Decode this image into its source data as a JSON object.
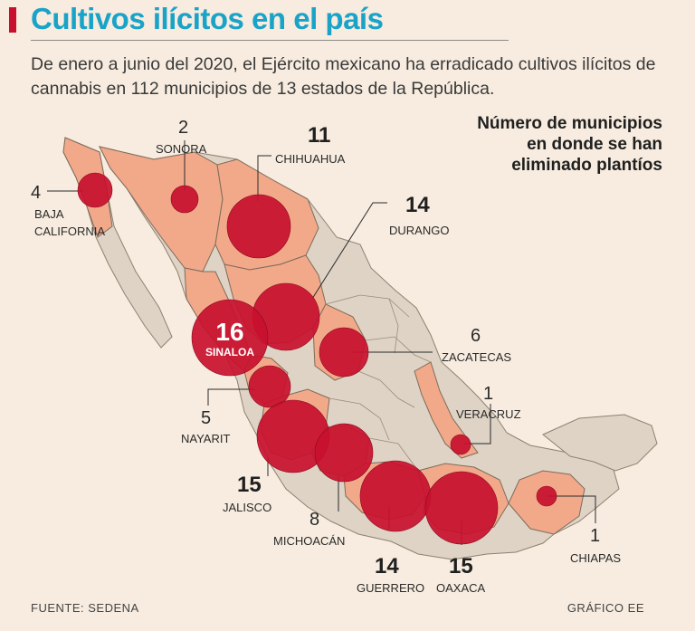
{
  "title": "Cultivos ilícitos en el país",
  "subtitle": "De enero a junio del 2020, el Ejército mexicano ha erradicado cultivos ilícitos de cannabis en 112 municipios de 13 estados de la República.",
  "legend_title": "Número de municipios en donde se han eliminado plantíos",
  "source": "FUENTE: SEDENA",
  "credit": "GRÁFICO EE",
  "colors": {
    "background": "#f7ecdf",
    "title": "#1aa3c8",
    "accent": "#c8102e",
    "bubble": "#c8102e",
    "highlight_state": "#f2a98a",
    "other_state": "#ded3c5",
    "border": "#7d6c5c"
  },
  "states": [
    {
      "name": "BAJA CALIFORNIA",
      "value": "4"
    },
    {
      "name": "SONORA",
      "value": "2"
    },
    {
      "name": "CHIHUAHUA",
      "value": "11"
    },
    {
      "name": "DURANGO",
      "value": "14"
    },
    {
      "name": "SINALOA",
      "value": "16"
    },
    {
      "name": "ZACATECAS",
      "value": "6"
    },
    {
      "name": "NAYARIT",
      "value": "5"
    },
    {
      "name": "VERACRUZ",
      "value": "1"
    },
    {
      "name": "JALISCO",
      "value": "15"
    },
    {
      "name": "MICHOACÁN",
      "value": "8"
    },
    {
      "name": "GUERRERO",
      "value": "14"
    },
    {
      "name": "OAXACA",
      "value": "15"
    },
    {
      "name": "CHIAPAS",
      "value": "1"
    }
  ]
}
